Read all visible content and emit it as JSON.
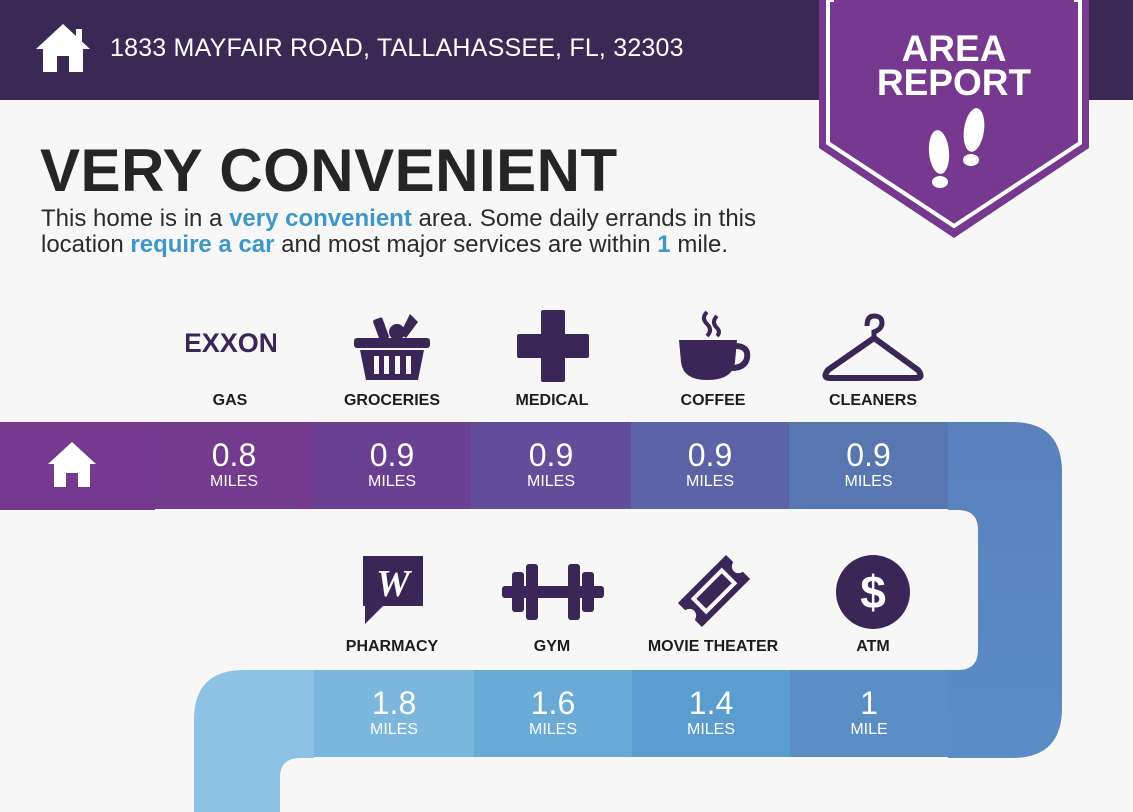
{
  "header": {
    "address": "1833 MAYFAIR ROAD, TALLAHASSEE, FL, 32303",
    "badge_line1": "AREA",
    "badge_line2": "REPORT"
  },
  "summary": {
    "title": "VERY CONVENIENT",
    "desc_1": "This home is in a ",
    "desc_2": "very convenient",
    "desc_3": " area. Some daily errands in this location ",
    "desc_4": "require a car",
    "desc_5": " and most major services are within ",
    "desc_6": "1",
    "desc_7": " mile."
  },
  "row1": [
    {
      "label": "GAS",
      "icon": "exxon-logo",
      "logo_text": "EXXON",
      "value": "0.8",
      "unit": "MILES",
      "color": "#733a8e"
    },
    {
      "label": "GROCERIES",
      "icon": "grocery-basket-icon",
      "value": "0.9",
      "unit": "MILES",
      "color": "#6a4192"
    },
    {
      "label": "MEDICAL",
      "icon": "medical-cross-icon",
      "value": "0.9",
      "unit": "MILES",
      "color": "#634e9c"
    },
    {
      "label": "COFFEE",
      "icon": "coffee-cup-icon",
      "value": "0.9",
      "unit": "MILES",
      "color": "#5c63a6"
    },
    {
      "label": "CLEANERS",
      "icon": "hanger-icon",
      "value": "0.9",
      "unit": "MILES",
      "color": "#5877b0"
    }
  ],
  "row2": [
    {
      "label": "PHARMACY",
      "icon": "walgreens-logo",
      "logo_text": "W",
      "value": "1.8",
      "unit": "MILES",
      "color": "#7bb6dd"
    },
    {
      "label": "GYM",
      "icon": "dumbbell-icon",
      "value": "1.6",
      "unit": "MILES",
      "color": "#6aaad7"
    },
    {
      "label": "MOVIE THEATER",
      "icon": "ticket-icon",
      "value": "1.4",
      "unit": "MILES",
      "color": "#5a9dcf"
    },
    {
      "label": "ATM",
      "icon": "dollar-icon",
      "logo_text": "$",
      "value": "1",
      "unit": "MILE",
      "color": "#5a8ec5"
    }
  ],
  "colors": {
    "header": "#3a2855",
    "badge": "#77388f",
    "icon": "#3b2658",
    "highlight": "#3f97c8"
  }
}
